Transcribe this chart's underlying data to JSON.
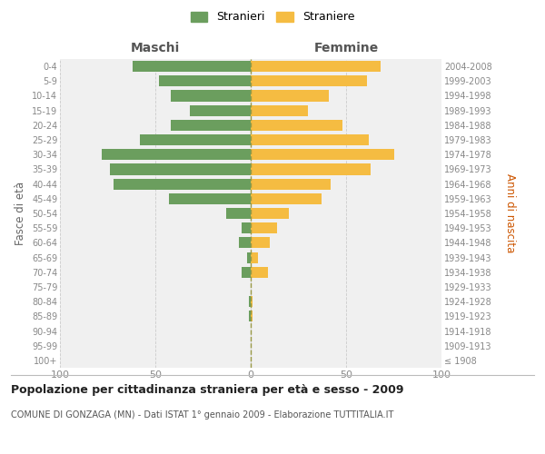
{
  "age_groups": [
    "0-4",
    "5-9",
    "10-14",
    "15-19",
    "20-24",
    "25-29",
    "30-34",
    "35-39",
    "40-44",
    "45-49",
    "50-54",
    "55-59",
    "60-64",
    "65-69",
    "70-74",
    "75-79",
    "80-84",
    "85-89",
    "90-94",
    "95-99",
    "100+"
  ],
  "birth_years": [
    "2004-2008",
    "1999-2003",
    "1994-1998",
    "1989-1993",
    "1984-1988",
    "1979-1983",
    "1974-1978",
    "1969-1973",
    "1964-1968",
    "1959-1963",
    "1954-1958",
    "1949-1953",
    "1944-1948",
    "1939-1943",
    "1934-1938",
    "1929-1933",
    "1924-1928",
    "1919-1923",
    "1914-1918",
    "1909-1913",
    "≤ 1908"
  ],
  "maschi": [
    62,
    48,
    42,
    32,
    42,
    58,
    78,
    74,
    72,
    43,
    13,
    5,
    6,
    2,
    5,
    0,
    1,
    1,
    0,
    0,
    0
  ],
  "femmine": [
    68,
    61,
    41,
    30,
    48,
    62,
    75,
    63,
    42,
    37,
    20,
    14,
    10,
    4,
    9,
    0,
    1,
    1,
    0,
    0,
    0
  ],
  "maschi_color": "#6b9e5e",
  "femmine_color": "#f5bc42",
  "bg_color": "#f0f0f0",
  "grid_color": "#cccccc",
  "title": "Popolazione per cittadinanza straniera per età e sesso - 2009",
  "subtitle": "COMUNE DI GONZAGA (MN) - Dati ISTAT 1° gennaio 2009 - Elaborazione TUTTITALIA.IT",
  "label_maschi": "Maschi",
  "label_femmine": "Femmine",
  "ylabel_left": "Fasce di età",
  "ylabel_right": "Anni di nascita",
  "legend_maschi": "Stranieri",
  "legend_femmine": "Straniere",
  "xlim": 100,
  "bar_height": 0.75,
  "center_line_color": "#999944",
  "right_ylabel_color": "#cc5500"
}
